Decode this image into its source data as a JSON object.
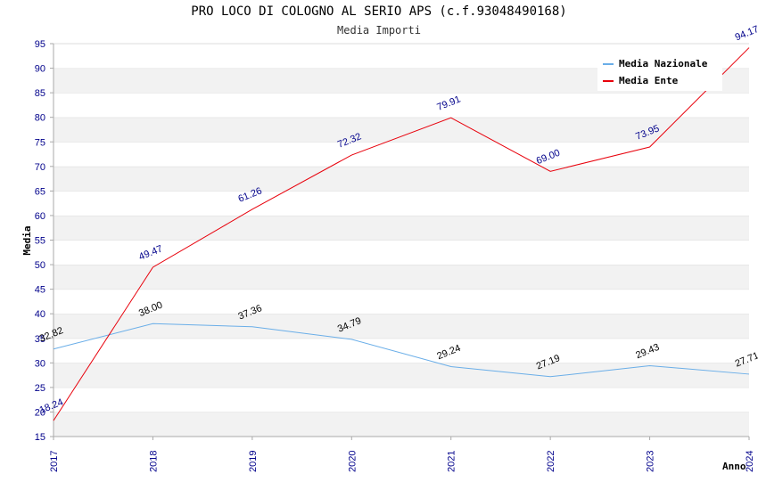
{
  "chart_data": {
    "type": "line",
    "title": "PRO LOCO DI COLOGNO AL SERIO APS (c.f.93048490168)",
    "subtitle": "Media Importi",
    "xlabel": "Anno",
    "ylabel": "Media",
    "x": [
      "2017",
      "2018",
      "2019",
      "2020",
      "2021",
      "2022",
      "2023",
      "2024"
    ],
    "ylim": [
      15,
      95
    ],
    "yticks": [
      "15",
      "20",
      "25",
      "30",
      "35",
      "40",
      "45",
      "50",
      "55",
      "60",
      "65",
      "70",
      "75",
      "80",
      "85",
      "90",
      "95"
    ],
    "grid": true,
    "legend_position": "top-right",
    "series": [
      {
        "name": "Media Nazionale",
        "color": "#6aaee8",
        "values": [
          32.82,
          38.0,
          37.36,
          34.79,
          29.24,
          27.19,
          29.43,
          27.71
        ],
        "labels": [
          "32.82",
          "38.00",
          "37.36",
          "34.79",
          "29.24",
          "27.19",
          "29.43",
          "27.71"
        ]
      },
      {
        "name": "Media Ente",
        "color": "#e8000b",
        "values": [
          18.24,
          49.47,
          61.26,
          72.32,
          79.91,
          69.0,
          73.95,
          94.17
        ],
        "labels": [
          "18.24",
          "49.47",
          "61.26",
          "72.32",
          "79.91",
          "69.00",
          "73.95",
          "94.17"
        ]
      }
    ]
  }
}
